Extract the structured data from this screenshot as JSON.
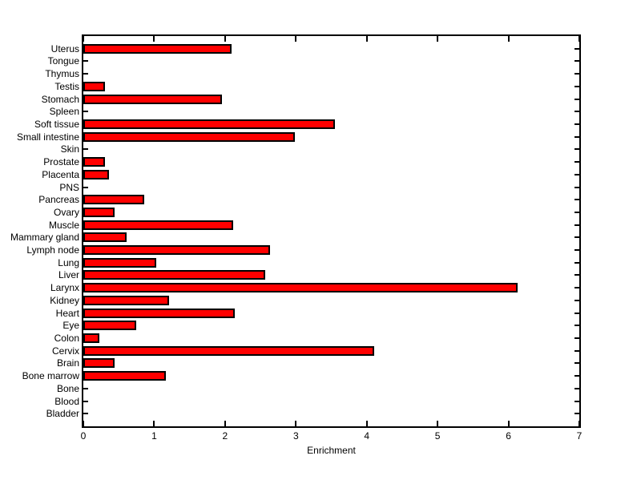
{
  "figure": {
    "background": "#ffffff"
  },
  "chart_data": {
    "type": "bar",
    "orientation": "horizontal",
    "title": "",
    "xlabel": "Enrichment",
    "ylabel": "",
    "xlim": [
      0,
      7
    ],
    "xticks": [
      0,
      1,
      2,
      3,
      4,
      5,
      6,
      7
    ],
    "grid": false,
    "legend": null,
    "bar_color": "#ff0000",
    "bar_edge_color": "#000000",
    "axis_color": "#000000",
    "categories": [
      "Uterus",
      "Tongue",
      "Thymus",
      "Testis",
      "Stomach",
      "Spleen",
      "Soft tissue",
      "Small intestine",
      "Skin",
      "Prostate",
      "Placenta",
      "PNS",
      "Pancreas",
      "Ovary",
      "Muscle",
      "Mammary gland",
      "Lymph node",
      "Lung",
      "Liver",
      "Larynx",
      "Kidney",
      "Heart",
      "Eye",
      "Colon",
      "Cervix",
      "Brain",
      "Bone marrow",
      "Bone",
      "Blood",
      "Bladder"
    ],
    "values": [
      2.09,
      0,
      0,
      0.31,
      1.96,
      0,
      3.55,
      2.99,
      0,
      0.31,
      0.36,
      0,
      0.86,
      0.44,
      2.11,
      0.61,
      2.63,
      1.03,
      2.57,
      6.13,
      1.21,
      2.14,
      0.75,
      0.23,
      4.1,
      0.44,
      1.16,
      0,
      0,
      0
    ]
  }
}
